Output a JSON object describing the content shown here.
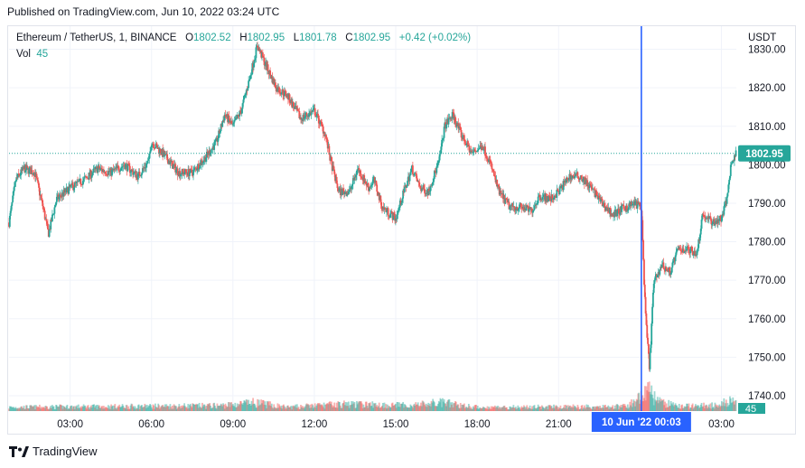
{
  "caption": "Published on TradingView.com, Jun 10, 2022 03:24 UTC",
  "legend": {
    "symbol": "Ethereum / TetherUS, 1, BINANCE",
    "o_key": "O",
    "o_val": "1802.52",
    "h_key": "H",
    "h_val": "1802.95",
    "l_key": "L",
    "l_val": "1801.78",
    "c_key": "C",
    "c_val": "1802.95",
    "change": "+0.42 (+0.02%)",
    "vol_key": "Vol",
    "vol_val": "45"
  },
  "currency": "USDT",
  "brand": "TradingView",
  "colors": {
    "up": "#26a69a",
    "down": "#ef5350",
    "price_line": "#26a69a",
    "crosshair": "#2962ff",
    "grid": "#f0f3fa"
  },
  "chart_data": {
    "type": "candlestick",
    "symbol": "ETH/USDT",
    "interval": "1",
    "exchange": "BINANCE",
    "last_price": 1802.95,
    "last_price_label": "1802.95",
    "last_volume_label": "45",
    "ylim": [
      1736,
      1836
    ],
    "y_ticks": [
      1740,
      1750,
      1760,
      1770,
      1780,
      1790,
      1800,
      1810,
      1820,
      1830
    ],
    "y_tick_labels": [
      "1740.00",
      "1750.00",
      "1760.00",
      "1770.00",
      "1780.00",
      "1790.00",
      "1800.00",
      "1810.00",
      "1820.00",
      "1830.00"
    ],
    "x_ticks": [
      "03:00",
      "06:00",
      "09:00",
      "12:00",
      "15:00",
      "18:00",
      "21:00",
      "03:00"
    ],
    "x_tick_hours": [
      3,
      6,
      9,
      12,
      15,
      18,
      21,
      27
    ],
    "x_range_hours": [
      0.75,
      27.55
    ],
    "crosshair_hour": 24.05,
    "crosshair_label": "10 Jun '22   00:03",
    "close_path": [
      [
        0.75,
        1785
      ],
      [
        1.0,
        1796
      ],
      [
        1.3,
        1799
      ],
      [
        1.7,
        1798
      ],
      [
        2.0,
        1789
      ],
      [
        2.2,
        1782
      ],
      [
        2.5,
        1791
      ],
      [
        3.0,
        1794
      ],
      [
        3.5,
        1796
      ],
      [
        4.0,
        1799
      ],
      [
        4.5,
        1798
      ],
      [
        5.0,
        1800
      ],
      [
        5.5,
        1797
      ],
      [
        5.9,
        1801
      ],
      [
        6.0,
        1806
      ],
      [
        6.4,
        1803
      ],
      [
        7.0,
        1798
      ],
      [
        7.5,
        1798
      ],
      [
        8.0,
        1802
      ],
      [
        8.4,
        1806
      ],
      [
        8.7,
        1813
      ],
      [
        9.0,
        1810
      ],
      [
        9.3,
        1814
      ],
      [
        9.6,
        1822
      ],
      [
        9.9,
        1831
      ],
      [
        10.2,
        1826
      ],
      [
        10.6,
        1820
      ],
      [
        11.0,
        1818
      ],
      [
        11.5,
        1812
      ],
      [
        12.0,
        1814
      ],
      [
        12.4,
        1808
      ],
      [
        12.6,
        1801
      ],
      [
        12.9,
        1793
      ],
      [
        13.3,
        1793
      ],
      [
        13.6,
        1799
      ],
      [
        14.0,
        1794
      ],
      [
        14.2,
        1796
      ],
      [
        14.5,
        1789
      ],
      [
        15.0,
        1786
      ],
      [
        15.3,
        1793
      ],
      [
        15.6,
        1799
      ],
      [
        15.9,
        1794
      ],
      [
        16.2,
        1793
      ],
      [
        16.6,
        1801
      ],
      [
        16.8,
        1810
      ],
      [
        17.1,
        1813
      ],
      [
        17.4,
        1808
      ],
      [
        17.8,
        1803
      ],
      [
        18.2,
        1805
      ],
      [
        18.5,
        1800
      ],
      [
        18.8,
        1793
      ],
      [
        19.2,
        1789
      ],
      [
        19.6,
        1789
      ],
      [
        20.0,
        1788
      ],
      [
        20.3,
        1792
      ],
      [
        20.7,
        1791
      ],
      [
        21.0,
        1793
      ],
      [
        21.4,
        1797
      ],
      [
        21.8,
        1797
      ],
      [
        22.2,
        1794
      ],
      [
        22.6,
        1790
      ],
      [
        23.0,
        1787
      ],
      [
        23.5,
        1789
      ],
      [
        23.8,
        1790
      ],
      [
        24.05,
        1789
      ],
      [
        24.2,
        1761
      ],
      [
        24.35,
        1747
      ],
      [
        24.5,
        1769
      ],
      [
        24.8,
        1774
      ],
      [
        25.1,
        1772
      ],
      [
        25.4,
        1778
      ],
      [
        25.8,
        1778
      ],
      [
        26.1,
        1777
      ],
      [
        26.3,
        1787
      ],
      [
        26.7,
        1785
      ],
      [
        27.0,
        1786
      ],
      [
        27.2,
        1791
      ],
      [
        27.35,
        1800
      ],
      [
        27.55,
        1803
      ]
    ],
    "volume_path": [
      [
        0.75,
        0.1
      ],
      [
        8.5,
        0.14
      ],
      [
        9.8,
        0.22
      ],
      [
        11.0,
        0.1
      ],
      [
        13.0,
        0.18
      ],
      [
        15.5,
        0.15
      ],
      [
        16.7,
        0.22
      ],
      [
        18.0,
        0.1
      ],
      [
        23.5,
        0.12
      ],
      [
        24.0,
        0.35
      ],
      [
        24.3,
        0.62
      ],
      [
        24.6,
        0.25
      ],
      [
        25.5,
        0.12
      ],
      [
        27.0,
        0.16
      ],
      [
        27.3,
        0.32
      ],
      [
        27.55,
        0.18
      ]
    ]
  }
}
